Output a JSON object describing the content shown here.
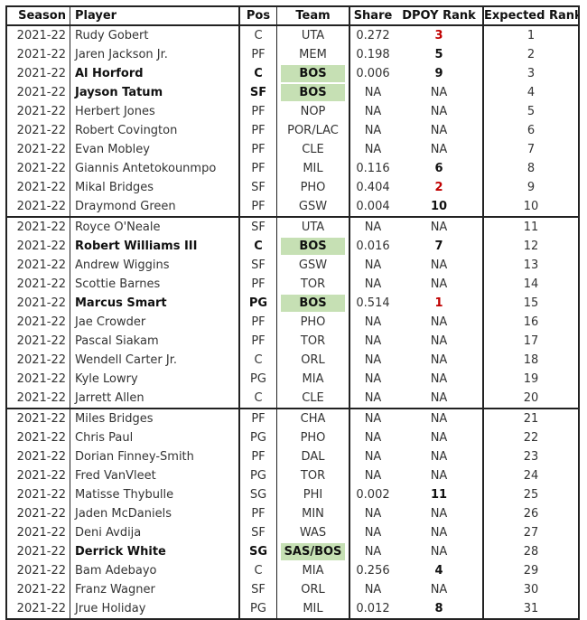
{
  "headers": [
    "Season",
    "Player",
    "Pos",
    "Team",
    "Share",
    "DPOY Rank",
    "Expected Rank"
  ],
  "season": "2021-22",
  "colors": {
    "highlight": "#c6e0b4",
    "rank_red": "#c00000"
  },
  "rows": [
    {
      "player": "Rudy Gobert",
      "pos": "C",
      "team": "UTA",
      "share": "0.272",
      "dpoy": "3",
      "exp": "1",
      "bold": false,
      "red": true
    },
    {
      "player": "Jaren Jackson Jr.",
      "pos": "PF",
      "team": "MEM",
      "share": "0.198",
      "dpoy": "5",
      "exp": "2",
      "bold": false,
      "red": false
    },
    {
      "player": "Al Horford",
      "pos": "C",
      "team": "BOS",
      "share": "0.006",
      "dpoy": "9",
      "exp": "3",
      "bold": true,
      "red": false
    },
    {
      "player": "Jayson Tatum",
      "pos": "SF",
      "team": "BOS",
      "share": "NA",
      "dpoy": "NA",
      "exp": "4",
      "bold": true,
      "red": false
    },
    {
      "player": "Herbert Jones",
      "pos": "PF",
      "team": "NOP",
      "share": "NA",
      "dpoy": "NA",
      "exp": "5",
      "bold": false,
      "red": false
    },
    {
      "player": "Robert Covington",
      "pos": "PF",
      "team": "POR/LAC",
      "share": "NA",
      "dpoy": "NA",
      "exp": "6",
      "bold": false,
      "red": false
    },
    {
      "player": "Evan Mobley",
      "pos": "PF",
      "team": "CLE",
      "share": "NA",
      "dpoy": "NA",
      "exp": "7",
      "bold": false,
      "red": false
    },
    {
      "player": "Giannis Antetokounmpo",
      "pos": "PF",
      "team": "MIL",
      "share": "0.116",
      "dpoy": "6",
      "exp": "8",
      "bold": false,
      "red": false
    },
    {
      "player": "Mikal Bridges",
      "pos": "SF",
      "team": "PHO",
      "share": "0.404",
      "dpoy": "2",
      "exp": "9",
      "bold": false,
      "red": true
    },
    {
      "player": "Draymond Green",
      "pos": "PF",
      "team": "GSW",
      "share": "0.004",
      "dpoy": "10",
      "exp": "10",
      "bold": false,
      "red": false
    },
    {
      "player": "Royce O'Neale",
      "pos": "SF",
      "team": "UTA",
      "share": "NA",
      "dpoy": "NA",
      "exp": "11",
      "bold": false,
      "red": false
    },
    {
      "player": "Robert Williams III",
      "pos": "C",
      "team": "BOS",
      "share": "0.016",
      "dpoy": "7",
      "exp": "12",
      "bold": true,
      "red": false
    },
    {
      "player": "Andrew Wiggins",
      "pos": "SF",
      "team": "GSW",
      "share": "NA",
      "dpoy": "NA",
      "exp": "13",
      "bold": false,
      "red": false
    },
    {
      "player": "Scottie Barnes",
      "pos": "PF",
      "team": "TOR",
      "share": "NA",
      "dpoy": "NA",
      "exp": "14",
      "bold": false,
      "red": false
    },
    {
      "player": "Marcus Smart",
      "pos": "PG",
      "team": "BOS",
      "share": "0.514",
      "dpoy": "1",
      "exp": "15",
      "bold": true,
      "red": true
    },
    {
      "player": "Jae Crowder",
      "pos": "PF",
      "team": "PHO",
      "share": "NA",
      "dpoy": "NA",
      "exp": "16",
      "bold": false,
      "red": false
    },
    {
      "player": "Pascal Siakam",
      "pos": "PF",
      "team": "TOR",
      "share": "NA",
      "dpoy": "NA",
      "exp": "17",
      "bold": false,
      "red": false
    },
    {
      "player": "Wendell Carter Jr.",
      "pos": "C",
      "team": "ORL",
      "share": "NA",
      "dpoy": "NA",
      "exp": "18",
      "bold": false,
      "red": false
    },
    {
      "player": "Kyle Lowry",
      "pos": "PG",
      "team": "MIA",
      "share": "NA",
      "dpoy": "NA",
      "exp": "19",
      "bold": false,
      "red": false
    },
    {
      "player": "Jarrett Allen",
      "pos": "C",
      "team": "CLE",
      "share": "NA",
      "dpoy": "NA",
      "exp": "20",
      "bold": false,
      "red": false
    },
    {
      "player": "Miles Bridges",
      "pos": "PF",
      "team": "CHA",
      "share": "NA",
      "dpoy": "NA",
      "exp": "21",
      "bold": false,
      "red": false
    },
    {
      "player": "Chris Paul",
      "pos": "PG",
      "team": "PHO",
      "share": "NA",
      "dpoy": "NA",
      "exp": "22",
      "bold": false,
      "red": false
    },
    {
      "player": "Dorian Finney-Smith",
      "pos": "PF",
      "team": "DAL",
      "share": "NA",
      "dpoy": "NA",
      "exp": "23",
      "bold": false,
      "red": false
    },
    {
      "player": "Fred VanVleet",
      "pos": "PG",
      "team": "TOR",
      "share": "NA",
      "dpoy": "NA",
      "exp": "24",
      "bold": false,
      "red": false
    },
    {
      "player": "Matisse Thybulle",
      "pos": "SG",
      "team": "PHI",
      "share": "0.002",
      "dpoy": "11",
      "exp": "25",
      "bold": false,
      "red": false
    },
    {
      "player": "Jaden McDaniels",
      "pos": "PF",
      "team": "MIN",
      "share": "NA",
      "dpoy": "NA",
      "exp": "26",
      "bold": false,
      "red": false
    },
    {
      "player": "Deni Avdija",
      "pos": "SF",
      "team": "WAS",
      "share": "NA",
      "dpoy": "NA",
      "exp": "27",
      "bold": false,
      "red": false
    },
    {
      "player": "Derrick White",
      "pos": "SG",
      "team": "SAS/BOS",
      "share": "NA",
      "dpoy": "NA",
      "exp": "28",
      "bold": true,
      "red": false
    },
    {
      "player": "Bam Adebayo",
      "pos": "C",
      "team": "MIA",
      "share": "0.256",
      "dpoy": "4",
      "exp": "29",
      "bold": false,
      "red": false
    },
    {
      "player": "Franz Wagner",
      "pos": "SF",
      "team": "ORL",
      "share": "NA",
      "dpoy": "NA",
      "exp": "30",
      "bold": false,
      "red": false
    },
    {
      "player": "Jrue Holiday",
      "pos": "PG",
      "team": "MIL",
      "share": "0.012",
      "dpoy": "8",
      "exp": "31",
      "bold": false,
      "red": false
    }
  ]
}
